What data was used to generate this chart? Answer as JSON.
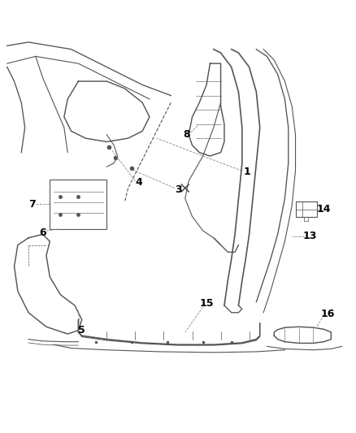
{
  "background_color": "#ffffff",
  "line_color": "#555555",
  "label_color": "#000000",
  "label_fontsize": 9,
  "drawing_color": "#555555",
  "drawing_linewidth": 0.8
}
